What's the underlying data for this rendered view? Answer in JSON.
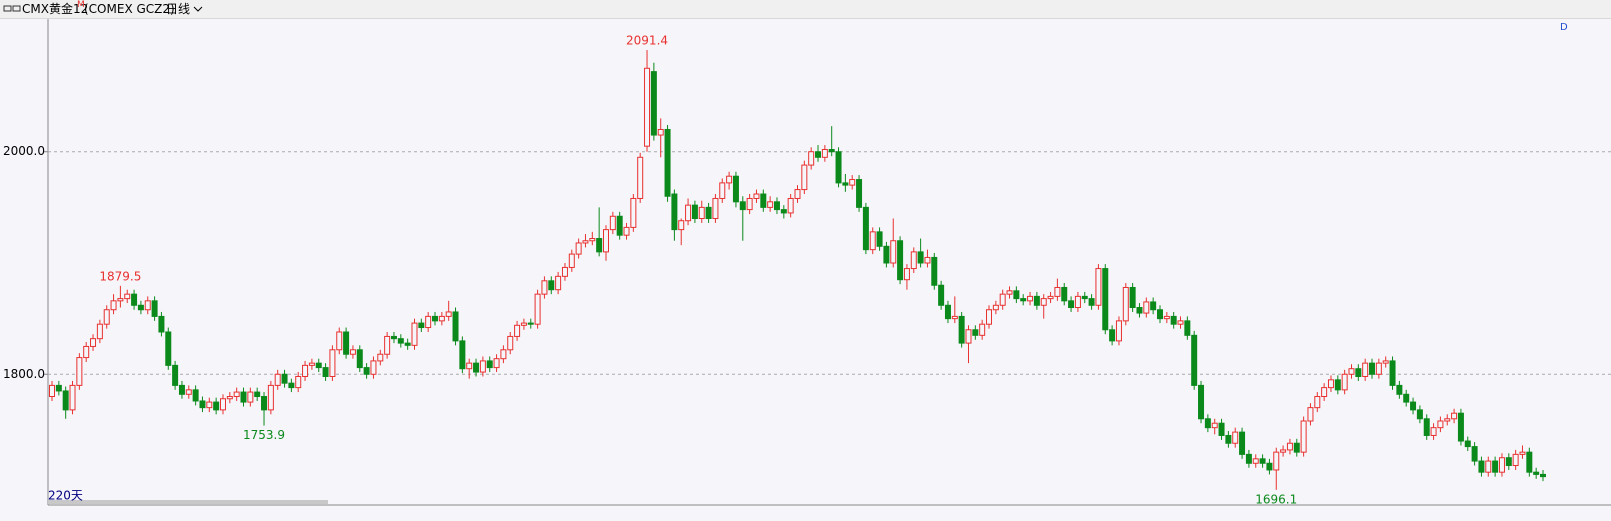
{
  "header": {
    "title": "CMX黄金12",
    "superscript": "M",
    "code": "(COMEX GCZ2)",
    "period": "日线"
  },
  "chart_data": {
    "type": "candlestick",
    "days_label": "220天",
    "corner_label": "D",
    "up_color": "#e8312f",
    "down_color": "#0b8a1b",
    "grid": true,
    "ylim": [
      1682.5,
      2119.3
    ],
    "yticks": [
      {
        "value": 1800,
        "label": "1800.0"
      },
      {
        "value": 2000,
        "label": "2000.0"
      }
    ],
    "candles": [
      [
        1780,
        1794,
        1776,
        1790
      ],
      [
        1790,
        1794,
        1781,
        1785
      ],
      [
        1785,
        1789,
        1760,
        1768
      ],
      [
        1768,
        1794,
        1764,
        1790
      ],
      [
        1790,
        1819,
        1786,
        1815
      ],
      [
        1815,
        1829,
        1811,
        1825
      ],
      [
        1825,
        1836,
        1821,
        1832
      ],
      [
        1832,
        1849,
        1828,
        1845
      ],
      [
        1845,
        1862,
        1841,
        1858
      ],
      [
        1858,
        1872,
        1854,
        1866
      ],
      [
        1866,
        1879.5,
        1860,
        1868
      ],
      [
        1868,
        1876,
        1864,
        1872
      ],
      [
        1872,
        1876,
        1858,
        1862
      ],
      [
        1862,
        1866,
        1854,
        1858
      ],
      [
        1858,
        1870,
        1854,
        1866
      ],
      [
        1866,
        1870,
        1848,
        1852
      ],
      [
        1852,
        1856,
        1834,
        1838
      ],
      [
        1838,
        1842,
        1804,
        1808
      ],
      [
        1808,
        1812,
        1786,
        1790
      ],
      [
        1790,
        1794,
        1778,
        1782
      ],
      [
        1782,
        1790,
        1778,
        1786
      ],
      [
        1786,
        1790,
        1772,
        1776
      ],
      [
        1776,
        1780,
        1766,
        1770
      ],
      [
        1770,
        1779,
        1766,
        1775
      ],
      [
        1775,
        1779,
        1764,
        1768
      ],
      [
        1768,
        1782,
        1764,
        1778
      ],
      [
        1778,
        1784,
        1774,
        1780
      ],
      [
        1780,
        1788,
        1776,
        1784
      ],
      [
        1784,
        1788,
        1771,
        1775
      ],
      [
        1775,
        1788,
        1771,
        1784
      ],
      [
        1784,
        1788,
        1776,
        1780
      ],
      [
        1780,
        1784,
        1753.9,
        1768
      ],
      [
        1768,
        1794,
        1764,
        1790
      ],
      [
        1790,
        1804,
        1786,
        1800
      ],
      [
        1800,
        1804,
        1788,
        1792
      ],
      [
        1792,
        1796,
        1784,
        1788
      ],
      [
        1788,
        1802,
        1784,
        1798
      ],
      [
        1798,
        1812,
        1794,
        1808
      ],
      [
        1808,
        1814,
        1804,
        1810
      ],
      [
        1810,
        1814,
        1802,
        1806
      ],
      [
        1806,
        1810,
        1794,
        1798
      ],
      [
        1798,
        1826,
        1794,
        1822
      ],
      [
        1822,
        1842,
        1818,
        1838
      ],
      [
        1838,
        1842,
        1814,
        1818
      ],
      [
        1818,
        1826,
        1814,
        1822
      ],
      [
        1822,
        1826,
        1802,
        1806
      ],
      [
        1806,
        1810,
        1796,
        1800
      ],
      [
        1800,
        1816,
        1796,
        1812
      ],
      [
        1812,
        1822,
        1808,
        1818
      ],
      [
        1818,
        1838,
        1814,
        1834
      ],
      [
        1834,
        1838,
        1828,
        1832
      ],
      [
        1832,
        1836,
        1824,
        1828
      ],
      [
        1828,
        1832,
        1822,
        1826
      ],
      [
        1826,
        1850,
        1822,
        1846
      ],
      [
        1846,
        1850,
        1838,
        1842
      ],
      [
        1842,
        1856,
        1838,
        1852
      ],
      [
        1852,
        1856,
        1844,
        1848
      ],
      [
        1848,
        1856,
        1844,
        1852
      ],
      [
        1852,
        1866,
        1848,
        1856
      ],
      [
        1856,
        1860,
        1826,
        1830
      ],
      [
        1830,
        1834,
        1801,
        1805
      ],
      [
        1805,
        1814,
        1796,
        1810
      ],
      [
        1810,
        1814,
        1798,
        1802
      ],
      [
        1802,
        1816,
        1798,
        1812
      ],
      [
        1812,
        1816,
        1802,
        1806
      ],
      [
        1806,
        1818,
        1802,
        1814
      ],
      [
        1814,
        1826,
        1810,
        1822
      ],
      [
        1822,
        1838,
        1818,
        1834
      ],
      [
        1834,
        1848,
        1830,
        1844
      ],
      [
        1844,
        1850,
        1840,
        1846
      ],
      [
        1846,
        1850,
        1841,
        1845
      ],
      [
        1845,
        1876,
        1841,
        1872
      ],
      [
        1872,
        1888,
        1868,
        1884
      ],
      [
        1884,
        1888,
        1872,
        1876
      ],
      [
        1876,
        1892,
        1872,
        1888
      ],
      [
        1888,
        1900,
        1884,
        1896
      ],
      [
        1896,
        1912,
        1892,
        1908
      ],
      [
        1908,
        1922,
        1904,
        1918
      ],
      [
        1918,
        1926,
        1914,
        1920
      ],
      [
        1920,
        1928,
        1916,
        1922
      ],
      [
        1922,
        1950,
        1906,
        1910
      ],
      [
        1910,
        1934,
        1902,
        1930
      ],
      [
        1930,
        1946,
        1926,
        1942
      ],
      [
        1942,
        1946,
        1921,
        1925
      ],
      [
        1925,
        1936,
        1921,
        1932
      ],
      [
        1932,
        1962,
        1928,
        1958
      ],
      [
        1958,
        1999,
        1954,
        1995
      ],
      [
        2005,
        2091.4,
        2000,
        2075
      ],
      [
        2072,
        2080,
        2010,
        2015
      ],
      [
        2015,
        2030,
        1995,
        2020
      ],
      [
        2020,
        2024,
        1955,
        1960
      ],
      [
        1962,
        1966,
        1920,
        1930
      ],
      [
        1930,
        1940,
        1916,
        1938
      ],
      [
        1938,
        1958,
        1934,
        1952
      ],
      [
        1952,
        1956,
        1936,
        1940
      ],
      [
        1940,
        1956,
        1936,
        1950
      ],
      [
        1950,
        1954,
        1936,
        1940
      ],
      [
        1940,
        1962,
        1936,
        1958
      ],
      [
        1958,
        1976,
        1954,
        1972
      ],
      [
        1972,
        1982,
        1966,
        1978
      ],
      [
        1978,
        1982,
        1950,
        1955
      ],
      [
        1955,
        1960,
        1920,
        1948
      ],
      [
        1948,
        1962,
        1944,
        1958
      ],
      [
        1958,
        1966,
        1954,
        1962
      ],
      [
        1962,
        1966,
        1946,
        1950
      ],
      [
        1950,
        1960,
        1946,
        1955
      ],
      [
        1955,
        1959,
        1944,
        1948
      ],
      [
        1948,
        1952,
        1940,
        1945
      ],
      [
        1945,
        1962,
        1941,
        1958
      ],
      [
        1958,
        1970,
        1954,
        1966
      ],
      [
        1966,
        1992,
        1962,
        1988
      ],
      [
        1988,
        2004,
        1984,
        2000
      ],
      [
        2000,
        2006,
        1991,
        1995
      ],
      [
        1995,
        2006,
        1991,
        2002
      ],
      [
        2002,
        2023,
        1996,
        2000
      ],
      [
        2000,
        2004,
        1968,
        1972
      ],
      [
        1972,
        1980,
        1964,
        1970
      ],
      [
        1970,
        1979,
        1966,
        1975
      ],
      [
        1975,
        1979,
        1946,
        1950
      ],
      [
        1950,
        1954,
        1908,
        1912
      ],
      [
        1912,
        1932,
        1908,
        1928
      ],
      [
        1928,
        1932,
        1911,
        1915
      ],
      [
        1915,
        1919,
        1896,
        1900
      ],
      [
        1900,
        1940,
        1896,
        1920
      ],
      [
        1920,
        1924,
        1881,
        1885
      ],
      [
        1885,
        1899,
        1876,
        1895
      ],
      [
        1895,
        1914,
        1891,
        1910
      ],
      [
        1910,
        1922,
        1896,
        1900
      ],
      [
        1900,
        1912,
        1896,
        1905
      ],
      [
        1905,
        1909,
        1876,
        1880
      ],
      [
        1880,
        1884,
        1858,
        1862
      ],
      [
        1862,
        1866,
        1846,
        1850
      ],
      [
        1850,
        1870,
        1846,
        1852
      ],
      [
        1852,
        1856,
        1824,
        1828
      ],
      [
        1828,
        1844,
        1810,
        1840
      ],
      [
        1840,
        1844,
        1831,
        1835
      ],
      [
        1835,
        1849,
        1831,
        1845
      ],
      [
        1845,
        1862,
        1841,
        1858
      ],
      [
        1858,
        1866,
        1854,
        1862
      ],
      [
        1862,
        1876,
        1858,
        1872
      ],
      [
        1872,
        1879,
        1868,
        1875
      ],
      [
        1875,
        1879,
        1864,
        1868
      ],
      [
        1868,
        1872,
        1862,
        1866
      ],
      [
        1866,
        1874,
        1862,
        1870
      ],
      [
        1870,
        1874,
        1858,
        1862
      ],
      [
        1862,
        1872,
        1850,
        1868
      ],
      [
        1868,
        1874,
        1864,
        1870
      ],
      [
        1870,
        1886,
        1866,
        1878
      ],
      [
        1878,
        1882,
        1862,
        1866
      ],
      [
        1866,
        1870,
        1856,
        1860
      ],
      [
        1860,
        1874,
        1856,
        1870
      ],
      [
        1870,
        1874,
        1864,
        1868
      ],
      [
        1868,
        1872,
        1858,
        1862
      ],
      [
        1862,
        1899,
        1858,
        1895
      ],
      [
        1895,
        1899,
        1836,
        1840
      ],
      [
        1840,
        1844,
        1826,
        1830
      ],
      [
        1830,
        1852,
        1826,
        1848
      ],
      [
        1848,
        1882,
        1844,
        1878
      ],
      [
        1878,
        1882,
        1856,
        1860
      ],
      [
        1860,
        1864,
        1851,
        1855
      ],
      [
        1855,
        1869,
        1851,
        1865
      ],
      [
        1865,
        1869,
        1854,
        1858
      ],
      [
        1858,
        1862,
        1846,
        1850
      ],
      [
        1850,
        1856,
        1846,
        1852
      ],
      [
        1852,
        1856,
        1841,
        1845
      ],
      [
        1845,
        1852,
        1841,
        1848
      ],
      [
        1848,
        1852,
        1831,
        1835
      ],
      [
        1835,
        1839,
        1786,
        1790
      ],
      [
        1790,
        1794,
        1756,
        1760
      ],
      [
        1760,
        1764,
        1748,
        1752
      ],
      [
        1752,
        1760,
        1746,
        1756
      ],
      [
        1756,
        1760,
        1741,
        1745
      ],
      [
        1745,
        1749,
        1734,
        1738
      ],
      [
        1738,
        1752,
        1734,
        1748
      ],
      [
        1748,
        1752,
        1724,
        1728
      ],
      [
        1728,
        1732,
        1716,
        1720
      ],
      [
        1720,
        1728,
        1716,
        1724
      ],
      [
        1724,
        1728,
        1716,
        1720
      ],
      [
        1720,
        1724,
        1710,
        1714
      ],
      [
        1714,
        1734,
        1696.1,
        1730
      ],
      [
        1730,
        1736,
        1726,
        1732
      ],
      [
        1732,
        1742,
        1728,
        1738
      ],
      [
        1738,
        1742,
        1726,
        1730
      ],
      [
        1730,
        1762,
        1726,
        1758
      ],
      [
        1758,
        1774,
        1754,
        1770
      ],
      [
        1770,
        1784,
        1766,
        1780
      ],
      [
        1780,
        1792,
        1776,
        1788
      ],
      [
        1788,
        1799,
        1784,
        1795
      ],
      [
        1795,
        1799,
        1782,
        1786
      ],
      [
        1786,
        1804,
        1782,
        1800
      ],
      [
        1800,
        1809,
        1796,
        1805
      ],
      [
        1805,
        1809,
        1794,
        1798
      ],
      [
        1798,
        1814,
        1794,
        1810
      ],
      [
        1810,
        1814,
        1796,
        1800
      ],
      [
        1800,
        1814,
        1796,
        1810
      ],
      [
        1810,
        1816,
        1806,
        1812
      ],
      [
        1812,
        1816,
        1786,
        1790
      ],
      [
        1790,
        1794,
        1778,
        1782
      ],
      [
        1782,
        1786,
        1771,
        1775
      ],
      [
        1775,
        1779,
        1764,
        1768
      ],
      [
        1768,
        1772,
        1756,
        1760
      ],
      [
        1760,
        1764,
        1741,
        1745
      ],
      [
        1745,
        1756,
        1741,
        1752
      ],
      [
        1752,
        1762,
        1748,
        1758
      ],
      [
        1758,
        1764,
        1754,
        1760
      ],
      [
        1760,
        1769,
        1756,
        1765
      ],
      [
        1765,
        1769,
        1736,
        1740
      ],
      [
        1740,
        1744,
        1731,
        1735
      ],
      [
        1735,
        1739,
        1718,
        1722
      ],
      [
        1722,
        1726,
        1708,
        1712
      ],
      [
        1712,
        1726,
        1708,
        1722
      ],
      [
        1722,
        1726,
        1708,
        1712
      ],
      [
        1712,
        1729,
        1708,
        1725
      ],
      [
        1725,
        1729,
        1714,
        1718
      ],
      [
        1718,
        1732,
        1714,
        1728
      ],
      [
        1728,
        1736,
        1724,
        1730
      ],
      [
        1730,
        1734,
        1708,
        1712
      ],
      [
        1712,
        1716,
        1706,
        1710
      ],
      [
        1710,
        1714,
        1704,
        1708
      ]
    ]
  }
}
